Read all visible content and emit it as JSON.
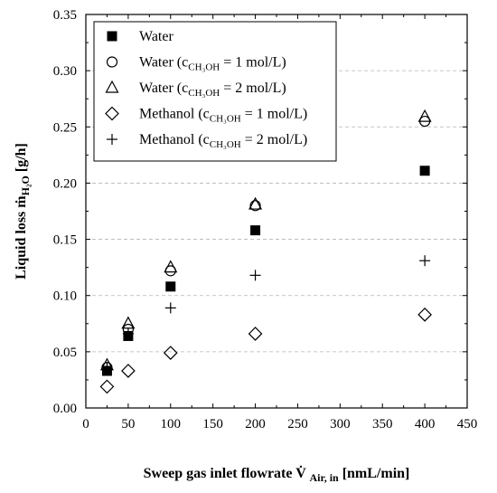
{
  "chart_data": {
    "type": "scatter",
    "xlabel": "Sweep gas inlet flowrate V̇",
    "xlabel_sub": "Air, in",
    "xlabel_unit": "[nmL/min]",
    "ylabel": "Liquid loss ṁ",
    "ylabel_sub": "H₂O",
    "ylabel_unit": "[g/h]",
    "xlim": [
      0,
      450
    ],
    "ylim": [
      0.0,
      0.35
    ],
    "xticks": [
      "0",
      "50",
      "100",
      "150",
      "200",
      "250",
      "300",
      "350",
      "400",
      "450"
    ],
    "yticks": [
      "0.00",
      "0.05",
      "0.10",
      "0.15",
      "0.20",
      "0.25",
      "0.30",
      "0.35"
    ],
    "grid": "horizontal dashed",
    "legend_position": "top-left",
    "series": [
      {
        "name": "Water",
        "marker": "filled-square",
        "x": [
          25,
          50,
          100,
          200,
          400
        ],
        "y": [
          0.033,
          0.064,
          0.108,
          0.158,
          0.211
        ]
      },
      {
        "name": "Water (cCH3OH = 1 mol/L)",
        "legend_main": "Water (c",
        "legend_sub": "CH₃OH",
        "legend_rest": " = 1 mol/L)",
        "marker": "open-circle",
        "x": [
          25,
          50,
          100,
          200,
          400
        ],
        "y": [
          0.036,
          0.07,
          0.122,
          0.18,
          0.255
        ]
      },
      {
        "name": "Water (cCH3OH = 2 mol/L)",
        "legend_main": "Water (c",
        "legend_sub": "CH₃OH",
        "legend_rest": " = 2 mol/L)",
        "marker": "open-triangle",
        "x": [
          25,
          50,
          100,
          200,
          400
        ],
        "y": [
          0.038,
          0.075,
          0.125,
          0.181,
          0.259
        ]
      },
      {
        "name": "Methanol (cCH3OH = 1 mol/L)",
        "legend_main": "Methanol (c",
        "legend_sub": "CH₃OH",
        "legend_rest": " = 1 mol/L)",
        "marker": "open-diamond",
        "x": [
          25,
          50,
          100,
          200,
          400
        ],
        "y": [
          0.019,
          0.033,
          0.049,
          0.066,
          0.083
        ]
      },
      {
        "name": "Methanol (cCH3OH = 2 mol/L)",
        "legend_main": "Methanol (c",
        "legend_sub": "CH₃OH",
        "legend_rest": " = 2 mol/L)",
        "marker": "plus",
        "x": [
          25,
          50,
          100,
          200,
          400
        ],
        "y": [
          0.036,
          0.066,
          0.089,
          0.118,
          0.131
        ]
      }
    ]
  }
}
